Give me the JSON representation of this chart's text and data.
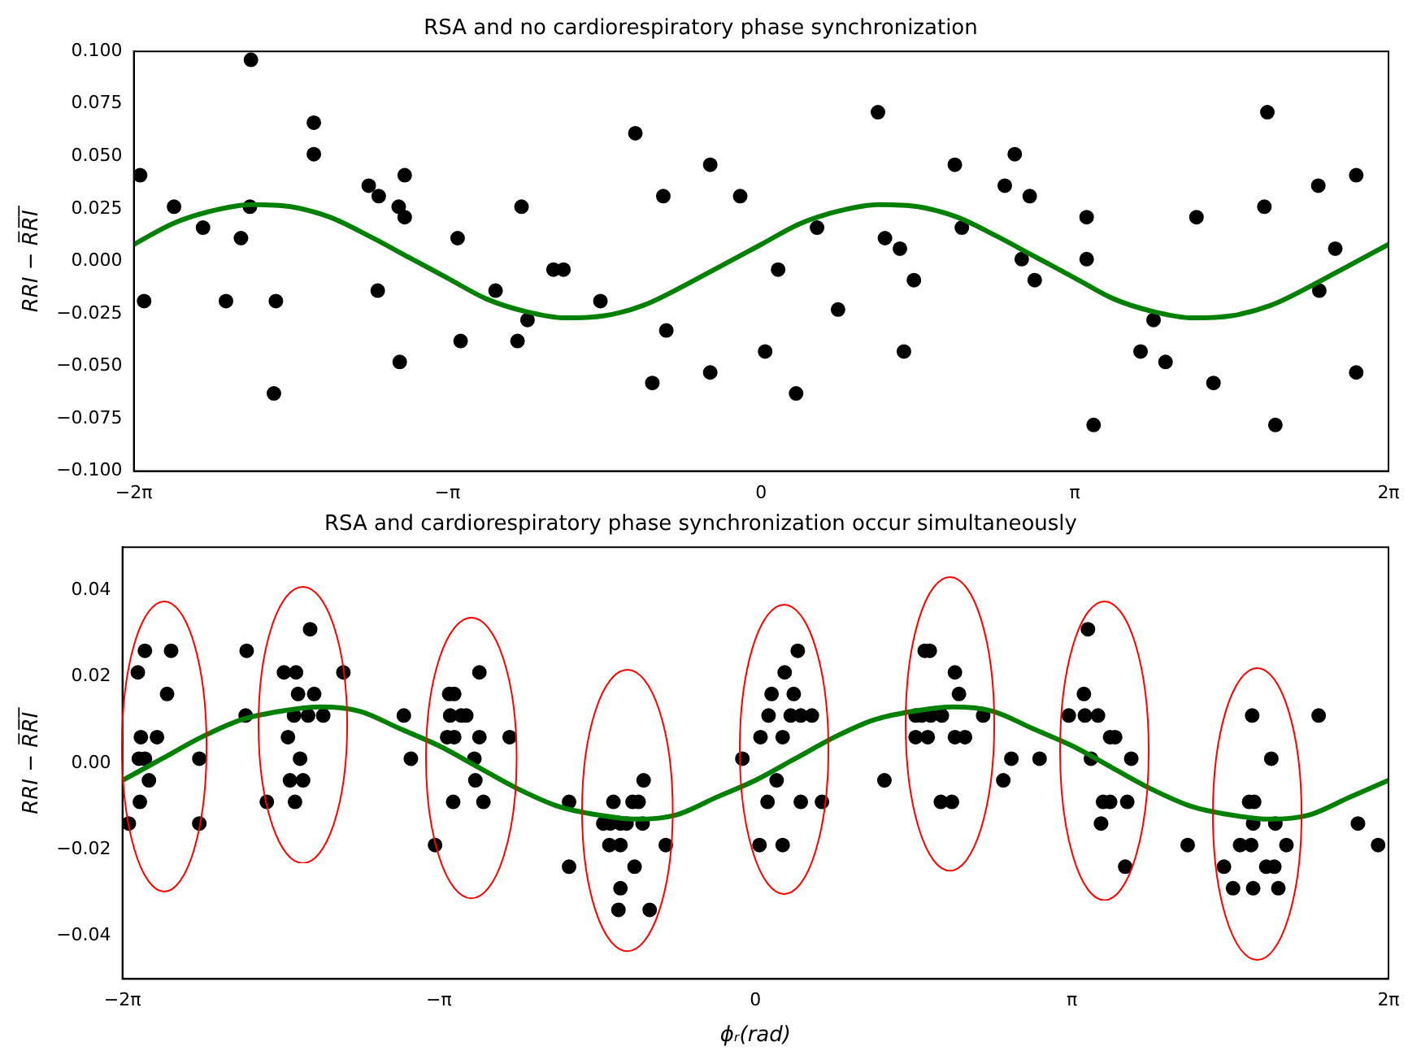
{
  "chart_data": [
    {
      "type": "scatter",
      "title": "RSA and no cardiorespiratory phase synchronization",
      "ylabel": "RRI − R̅R̅I̅",
      "xlim": [
        -6.283,
        6.283
      ],
      "xticks": [
        {
          "value": -6.283,
          "label": "−2π"
        },
        {
          "value": -3.142,
          "label": "−π"
        },
        {
          "value": 0,
          "label": "0"
        },
        {
          "value": 3.142,
          "label": "π"
        },
        {
          "value": 6.283,
          "label": "2π"
        }
      ],
      "ylim": [
        -0.1,
        0.1
      ],
      "yticks": [
        {
          "value": -0.1,
          "label": "−0.100"
        },
        {
          "value": -0.075,
          "label": "−0.075"
        },
        {
          "value": -0.05,
          "label": "−0.050"
        },
        {
          "value": -0.025,
          "label": "−0.025"
        },
        {
          "value": 0,
          "label": "0.000"
        },
        {
          "value": 0.025,
          "label": "0.025"
        },
        {
          "value": 0.05,
          "label": "0.050"
        },
        {
          "value": 0.075,
          "label": "0.075"
        },
        {
          "value": 0.1,
          "label": "0.100"
        }
      ],
      "grid": false,
      "legend": false,
      "series": [
        {
          "marker": "circle",
          "color": "#000000",
          "x": [
            -6.22,
            -6.18,
            -5.88,
            -5.59,
            -5.36,
            -5.21,
            -5.11,
            -5.12,
            -4.86,
            -4.88,
            -4.48,
            -4.48,
            -3.93,
            -3.83,
            -3.84,
            -3.63,
            -3.57,
            -3.57,
            -3.62,
            -3.04,
            -3.01,
            -2.66,
            -2.4,
            -2.34,
            -2.44,
            -2.08,
            -1.98,
            -1.61,
            -1.26,
            -0.98,
            -0.95,
            -1.09,
            -0.51,
            -0.51,
            -0.21,
            0.04,
            0.17,
            0.35,
            0.56,
            0.77,
            1.17,
            1.24,
            1.39,
            1.43,
            1.53,
            1.94,
            2.01,
            2.44,
            2.54,
            2.69,
            2.61,
            2.74,
            3.26,
            3.26,
            3.33,
            3.8,
            3.93,
            4.05,
            4.36,
            4.53,
            5.04,
            5.07,
            5.15,
            5.58,
            5.59,
            5.75,
            5.96,
            5.96
          ],
          "values": [
            0.041,
            -0.019,
            0.026,
            0.016,
            -0.019,
            0.011,
            0.096,
            0.026,
            -0.019,
            -0.063,
            0.066,
            0.051,
            0.036,
            0.031,
            -0.014,
            0.026,
            0.041,
            0.021,
            -0.048,
            0.011,
            -0.038,
            -0.014,
            0.026,
            -0.028,
            -0.038,
            -0.004,
            -0.004,
            -0.019,
            0.061,
            0.031,
            -0.033,
            -0.058,
            0.046,
            -0.053,
            0.031,
            -0.043,
            -0.004,
            -0.063,
            0.016,
            -0.023,
            0.071,
            0.011,
            0.006,
            -0.043,
            -0.009,
            0.046,
            0.016,
            0.036,
            0.051,
            0.031,
            0.001,
            -0.009,
            0.021,
            0.001,
            -0.078,
            -0.043,
            -0.028,
            -0.048,
            0.021,
            -0.058,
            0.026,
            0.071,
            -0.078,
            0.036,
            -0.014,
            0.006,
            0.041,
            -0.053
          ]
        },
        {
          "type": "line",
          "color": "#008000",
          "x": [
            -6.283,
            -5.89,
            -5.498,
            -5.105,
            -4.712,
            -4.32,
            -3.927,
            -3.534,
            -3.142,
            -2.749,
            -2.356,
            -1.963,
            -1.571,
            -1.178,
            -0.785,
            -0.393,
            0,
            0.393,
            0.785,
            1.178,
            1.571,
            1.963,
            2.356,
            2.749,
            3.142,
            3.534,
            3.927,
            4.32,
            4.712,
            5.105,
            5.498,
            5.89,
            6.283
          ],
          "values": [
            0.008,
            0.018,
            0.024,
            0.027,
            0.026,
            0.021,
            0.012,
            0.002,
            -0.008,
            -0.018,
            -0.024,
            -0.027,
            -0.026,
            -0.021,
            -0.012,
            -0.002,
            0.008,
            0.018,
            0.024,
            0.027,
            0.026,
            0.021,
            0.012,
            0.002,
            -0.008,
            -0.018,
            -0.024,
            -0.027,
            -0.026,
            -0.021,
            -0.012,
            -0.002,
            0.008
          ]
        }
      ]
    },
    {
      "type": "scatter",
      "title": "RSA and cardiorespiratory phase synchronization occur simultaneously",
      "xlabel": "ϕᵣ(rad)",
      "ylabel": "RRI − R̅R̅I̅",
      "xlim": [
        -6.283,
        6.283
      ],
      "xticks": [
        {
          "value": -6.283,
          "label": "−2π"
        },
        {
          "value": -3.142,
          "label": "−π"
        },
        {
          "value": 0,
          "label": "0"
        },
        {
          "value": 3.142,
          "label": "π"
        },
        {
          "value": 6.283,
          "label": "2π"
        }
      ],
      "ylim": [
        -0.05,
        0.05
      ],
      "yticks": [
        {
          "value": -0.04,
          "label": "−0.04"
        },
        {
          "value": -0.02,
          "label": "−0.02"
        },
        {
          "value": 0,
          "label": "0.00"
        },
        {
          "value": 0.02,
          "label": "0.02"
        },
        {
          "value": 0.04,
          "label": "0.04"
        }
      ],
      "grid": false,
      "legend": false,
      "series": [
        {
          "marker": "circle",
          "color": "#000000",
          "x": [
            -6.22,
            -6.13,
            -6.06,
            -6.1,
            -6.12,
            -6.06,
            -6.02,
            -6.11,
            -5.94,
            -5.8,
            -5.84,
            -5.52,
            -5.52,
            -5.05,
            -5.06,
            -4.85,
            -4.68,
            -4.56,
            -4.42,
            -4.54,
            -4.38,
            -4.64,
            -4.58,
            -4.44,
            -4.29,
            -4.52,
            -4.62,
            -4.49,
            -4.57,
            -4.09,
            -3.49,
            -3.42,
            -3.18,
            -3.04,
            -2.99,
            -2.74,
            -3.03,
            -2.92,
            -2.87,
            -3.06,
            -2.99,
            -2.74,
            -2.44,
            -2.79,
            -2.78,
            -3,
            -2.7,
            -1.85,
            -1.85,
            -1.41,
            -1.22,
            -1.16,
            -1.11,
            -1.51,
            -1.44,
            -1.34,
            -1.28,
            -1.12,
            -1.45,
            -1.34,
            -0.89,
            -1.2,
            -1.34,
            -1.36,
            -1.05,
            -0.13,
            0.42,
            0.29,
            0.16,
            0.38,
            0.13,
            0.35,
            0.45,
            0.56,
            0.05,
            0.27,
            0.21,
            0.12,
            0.45,
            0.66,
            0.04,
            0.27,
            1.28,
            1.68,
            1.73,
            1.98,
            2.02,
            1.59,
            1.65,
            1.74,
            1.85,
            2.26,
            1.59,
            1.71,
            1.98,
            2.08,
            1.84,
            1.95,
            2.46,
            2.54,
            2.82,
            3.3,
            3.26,
            3.11,
            3.27,
            3.4,
            3.52,
            3.57,
            3.33,
            3.73,
            3.45,
            3.52,
            3.69,
            3.43,
            3.67,
            4.29,
            4.93,
            5.12,
            4.9,
            4.95,
            4.94,
            5.16,
            4.81,
            4.92,
            5.27,
            4.65,
            5.07,
            5.15,
            4.74,
            4.94,
            5.19,
            5.59,
            5.98,
            6.18
          ],
          "values": [
            -0.014,
            0.021,
            0.026,
            0.006,
            0.001,
            0.001,
            -0.004,
            -0.009,
            0.006,
            0.026,
            0.016,
            0.001,
            -0.014,
            0.026,
            0.011,
            -0.009,
            0.021,
            0.021,
            0.031,
            0.016,
            0.016,
            0.006,
            0.011,
            0.011,
            0.011,
            0.001,
            -0.004,
            -0.004,
            -0.009,
            0.021,
            0.011,
            0.001,
            -0.019,
            0.016,
            0.016,
            0.021,
            0.011,
            0.011,
            0.011,
            0.006,
            0.006,
            0.006,
            0.006,
            0.001,
            -0.004,
            -0.009,
            -0.009,
            -0.009,
            -0.024,
            -0.009,
            -0.009,
            -0.009,
            -0.004,
            -0.014,
            -0.014,
            -0.014,
            -0.014,
            -0.014,
            -0.019,
            -0.019,
            -0.019,
            -0.024,
            -0.029,
            -0.034,
            -0.034,
            0.001,
            0.026,
            0.021,
            0.016,
            0.016,
            0.011,
            0.011,
            0.011,
            0.011,
            0.006,
            0.006,
            -0.004,
            -0.009,
            -0.009,
            -0.009,
            -0.019,
            -0.019,
            -0.004,
            0.026,
            0.026,
            0.021,
            0.016,
            0.011,
            0.011,
            0.011,
            0.011,
            0.011,
            0.006,
            0.006,
            0.006,
            0.006,
            -0.009,
            -0.009,
            -0.004,
            0.001,
            0.001,
            0.031,
            0.016,
            0.011,
            0.011,
            0.011,
            0.006,
            0.006,
            0.001,
            0.001,
            -0.009,
            -0.009,
            -0.009,
            -0.014,
            -0.024,
            -0.019,
            0.011,
            0.001,
            -0.009,
            -0.009,
            -0.014,
            -0.014,
            -0.019,
            -0.019,
            -0.019,
            -0.024,
            -0.024,
            -0.024,
            -0.029,
            -0.029,
            -0.029,
            0.011,
            -0.014,
            -0.019
          ]
        },
        {
          "type": "line",
          "color": "#008000",
          "x": [
            -6.283,
            -5.89,
            -5.498,
            -5.105,
            -4.712,
            -4.32,
            -3.927,
            -3.534,
            -3.142,
            -2.749,
            -2.356,
            -1.963,
            -1.571,
            -1.178,
            -0.785,
            -0.393,
            0,
            0.393,
            0.785,
            1.178,
            1.571,
            1.963,
            2.356,
            2.749,
            3.142,
            3.534,
            3.927,
            4.32,
            4.712,
            5.105,
            5.498,
            5.89,
            6.283
          ],
          "values": [
            -0.004,
            0.001,
            0.006,
            0.01,
            0.012,
            0.013,
            0.012,
            0.008,
            0.004,
            -0.001,
            -0.006,
            -0.01,
            -0.012,
            -0.013,
            -0.012,
            -0.008,
            -0.004,
            0.001,
            0.006,
            0.01,
            0.012,
            0.013,
            0.012,
            0.008,
            0.004,
            -0.001,
            -0.006,
            -0.01,
            -0.012,
            -0.013,
            -0.012,
            -0.008,
            -0.004
          ]
        }
      ]
    }
  ]
}
